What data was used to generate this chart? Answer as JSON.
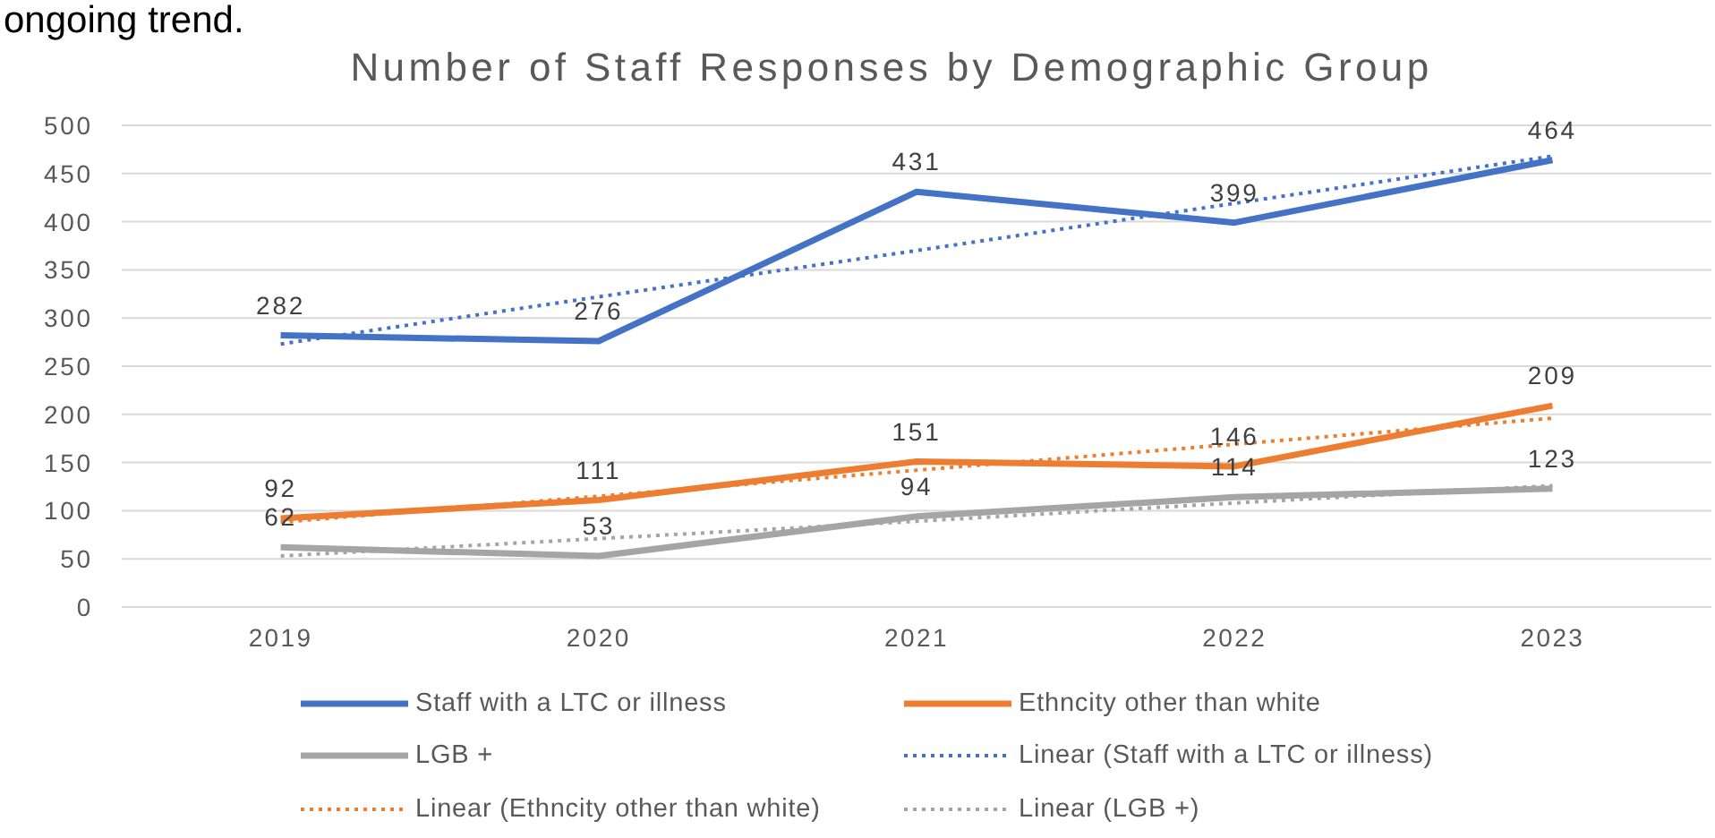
{
  "chart_data": {
    "type": "line",
    "title": "Number of Staff Responses by Demographic Group",
    "annotations": [
      "ongoing trend."
    ],
    "categories": [
      "2019",
      "2020",
      "2021",
      "2022",
      "2023"
    ],
    "series": [
      {
        "name": "Staff with a LTC or illness",
        "color": "#4472c4",
        "values": [
          282,
          276,
          431,
          399,
          464
        ],
        "value_labels": [
          "282",
          "276",
          "431",
          "399",
          "464"
        ]
      },
      {
        "name": "Ethncity other than white",
        "color": "#ed7d31",
        "values": [
          92,
          111,
          151,
          146,
          209
        ],
        "value_labels": [
          "92",
          "111",
          "151",
          "146",
          "209"
        ]
      },
      {
        "name": "LGB +",
        "color": "#a5a5a5",
        "values": [
          62,
          53,
          94,
          114,
          123
        ],
        "value_labels": [
          "62",
          "53",
          "94",
          "114",
          "123"
        ]
      },
      {
        "name": "Linear (Staff with a LTC or illness)",
        "type": "line",
        "line_style": "dotted",
        "color": "#4472c4",
        "values": [
          273,
          322,
          370,
          419,
          468
        ]
      },
      {
        "name": "Linear (Ethncity other than white)",
        "type": "line",
        "line_style": "dotted",
        "color": "#ed7d31",
        "values": [
          88,
          115,
          142,
          169,
          196
        ]
      },
      {
        "name": "Linear (LGB +)",
        "type": "line",
        "line_style": "dotted",
        "color": "#a5a5a5",
        "values": [
          53,
          71,
          89,
          108,
          126
        ]
      }
    ],
    "ylim": [
      0,
      500
    ],
    "yticks": [
      0,
      50,
      100,
      150,
      200,
      250,
      300,
      350,
      400,
      450,
      500
    ],
    "grid": "y",
    "legend": "bottom",
    "marker": "none",
    "line_style": "solid"
  }
}
